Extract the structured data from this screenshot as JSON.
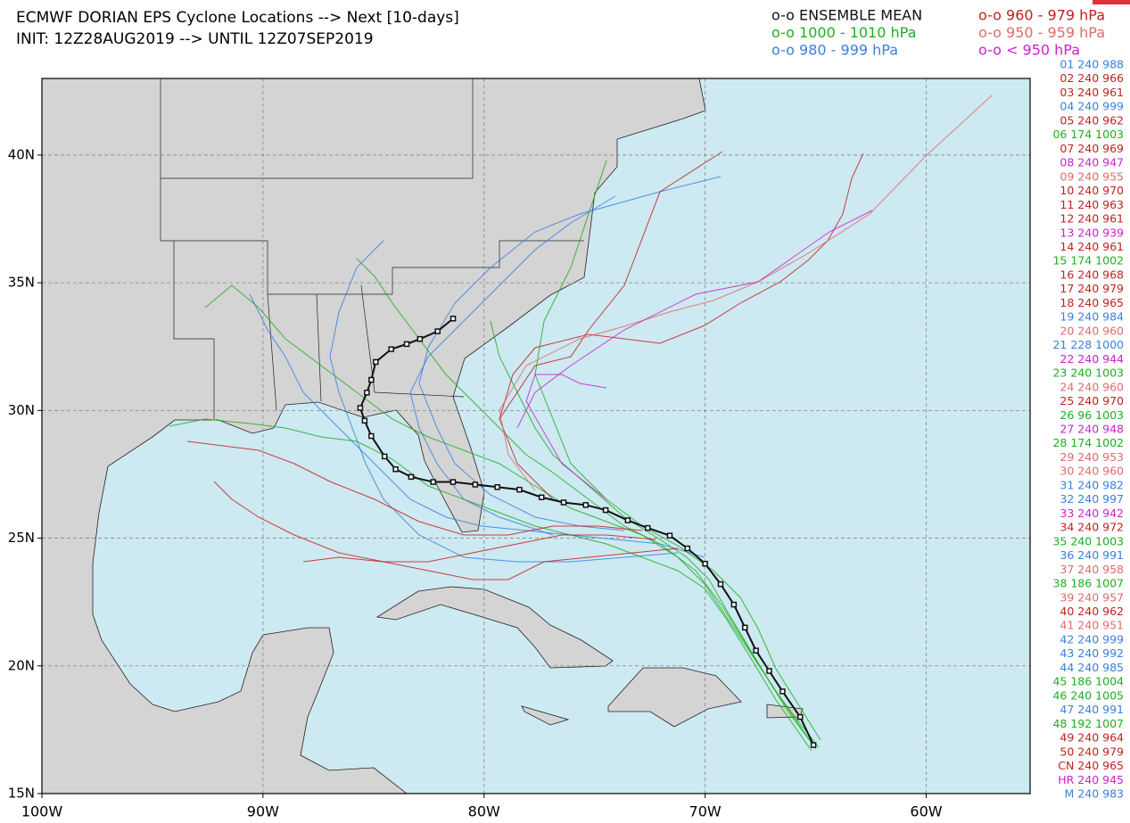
{
  "header": {
    "title": "ECMWF DORIAN EPS Cyclone Locations --> Next [10-days]",
    "subtitle": "INIT: 12Z28AUG2019 --> UNTIL 12Z07SEP2019"
  },
  "legend": [
    {
      "label": "o-o ENSEMBLE MEAN",
      "color": "#111111"
    },
    {
      "label": "o-o 1000 - 1010 hPa",
      "color": "#1fae1f"
    },
    {
      "label": "o-o 980 - 999 hPa",
      "color": "#3a7fe0"
    },
    {
      "label": "o-o 960 - 979 hPa",
      "color": "#c42020"
    },
    {
      "label": "o-o 950 - 959 hPa",
      "color": "#e06b6b"
    },
    {
      "label": "o-o < 950 hPa",
      "color": "#cc22cc"
    }
  ],
  "members": [
    {
      "label": "01 240 988",
      "color": "#3a7fe0"
    },
    {
      "label": "02 240 966",
      "color": "#c42020"
    },
    {
      "label": "03 240 961",
      "color": "#c42020"
    },
    {
      "label": "04 240 999",
      "color": "#3a7fe0"
    },
    {
      "label": "05 240 962",
      "color": "#c42020"
    },
    {
      "label": "06 174 1003",
      "color": "#1fae1f"
    },
    {
      "label": "07 240 969",
      "color": "#c42020"
    },
    {
      "label": "08 240 947",
      "color": "#cc22cc"
    },
    {
      "label": "09 240 955",
      "color": "#e06b6b"
    },
    {
      "label": "10 240 970",
      "color": "#c42020"
    },
    {
      "label": "11 240 963",
      "color": "#c42020"
    },
    {
      "label": "12 240 961",
      "color": "#c42020"
    },
    {
      "label": "13 240 939",
      "color": "#cc22cc"
    },
    {
      "label": "14 240 961",
      "color": "#c42020"
    },
    {
      "label": "15 174 1002",
      "color": "#1fae1f"
    },
    {
      "label": "16 240 968",
      "color": "#c42020"
    },
    {
      "label": "17 240 979",
      "color": "#c42020"
    },
    {
      "label": "18 240 965",
      "color": "#c42020"
    },
    {
      "label": "19 240 984",
      "color": "#3a7fe0"
    },
    {
      "label": "20 240 960",
      "color": "#e06b6b"
    },
    {
      "label": "21 228 1000",
      "color": "#3a7fe0"
    },
    {
      "label": "22 240 944",
      "color": "#cc22cc"
    },
    {
      "label": "23 240 1003",
      "color": "#1fae1f"
    },
    {
      "label": "24 240 960",
      "color": "#e06b6b"
    },
    {
      "label": "25 240 970",
      "color": "#c42020"
    },
    {
      "label": "26 96 1003",
      "color": "#1fae1f"
    },
    {
      "label": "27 240 948",
      "color": "#cc22cc"
    },
    {
      "label": "28 174 1002",
      "color": "#1fae1f"
    },
    {
      "label": "29 240 953",
      "color": "#e06b6b"
    },
    {
      "label": "30 240 960",
      "color": "#e06b6b"
    },
    {
      "label": "31 240 982",
      "color": "#3a7fe0"
    },
    {
      "label": "32 240 997",
      "color": "#3a7fe0"
    },
    {
      "label": "33 240 942",
      "color": "#cc22cc"
    },
    {
      "label": "34 240 972",
      "color": "#c42020"
    },
    {
      "label": "35 240 1003",
      "color": "#1fae1f"
    },
    {
      "label": "36 240 991",
      "color": "#3a7fe0"
    },
    {
      "label": "37 240 958",
      "color": "#e06b6b"
    },
    {
      "label": "38 186 1007",
      "color": "#1fae1f"
    },
    {
      "label": "39 240 957",
      "color": "#e06b6b"
    },
    {
      "label": "40 240 962",
      "color": "#c42020"
    },
    {
      "label": "41 240 951",
      "color": "#e06b6b"
    },
    {
      "label": "42 240 999",
      "color": "#3a7fe0"
    },
    {
      "label": "43 240 992",
      "color": "#3a7fe0"
    },
    {
      "label": "44 240 985",
      "color": "#3a7fe0"
    },
    {
      "label": "45 186 1004",
      "color": "#1fae1f"
    },
    {
      "label": "46 240 1005",
      "color": "#1fae1f"
    },
    {
      "label": "47 240 991",
      "color": "#3a7fe0"
    },
    {
      "label": "48 192 1007",
      "color": "#1fae1f"
    },
    {
      "label": "49 240 964",
      "color": "#c42020"
    },
    {
      "label": "50 240 979",
      "color": "#c42020"
    },
    {
      "label": "CN 240 965",
      "color": "#c42020"
    },
    {
      "label": "HR 240 945",
      "color": "#cc22cc"
    },
    {
      "label": "M 240 983",
      "color": "#3a7fe0"
    }
  ],
  "map": {
    "xlim": [
      -100,
      -55.3
    ],
    "ylim": [
      15,
      43
    ],
    "xticks": [
      {
        "value": -100,
        "label": "100W"
      },
      {
        "value": -90,
        "label": "90W"
      },
      {
        "value": -80,
        "label": "80W"
      },
      {
        "value": -70,
        "label": "70W"
      },
      {
        "value": -60,
        "label": "60W"
      }
    ],
    "yticks": [
      {
        "value": 15,
        "label": "15N"
      },
      {
        "value": 20,
        "label": "20N"
      },
      {
        "value": 25,
        "label": "25N"
      },
      {
        "value": 30,
        "label": "30N"
      },
      {
        "value": 35,
        "label": "35N"
      },
      {
        "value": 40,
        "label": "40N"
      }
    ],
    "ensemble_mean": {
      "lon": [
        -65.1,
        -65.7,
        -66.5,
        -67.1,
        -67.7,
        -68.2,
        -68.7,
        -69.3,
        -70.0,
        -70.8,
        -71.6,
        -72.6,
        -73.5,
        -74.5,
        -75.4,
        -76.4,
        -77.4,
        -78.4,
        -79.4,
        -80.4,
        -81.4,
        -82.3,
        -83.3,
        -84.0,
        -84.5,
        -85.1,
        -85.4,
        -85.6,
        -85.3,
        -85.1,
        -84.9,
        -84.2,
        -83.5,
        -82.9,
        -82.1,
        -81.4
      ],
      "lat": [
        16.9,
        18.0,
        19.0,
        19.8,
        20.6,
        21.5,
        22.4,
        23.2,
        24.0,
        24.6,
        25.1,
        25.4,
        25.7,
        26.1,
        26.3,
        26.4,
        26.6,
        26.9,
        27.0,
        27.1,
        27.2,
        27.2,
        27.4,
        27.7,
        28.2,
        29.0,
        29.6,
        30.1,
        30.7,
        31.2,
        31.9,
        32.4,
        32.6,
        32.8,
        33.1,
        33.6
      ]
    }
  }
}
